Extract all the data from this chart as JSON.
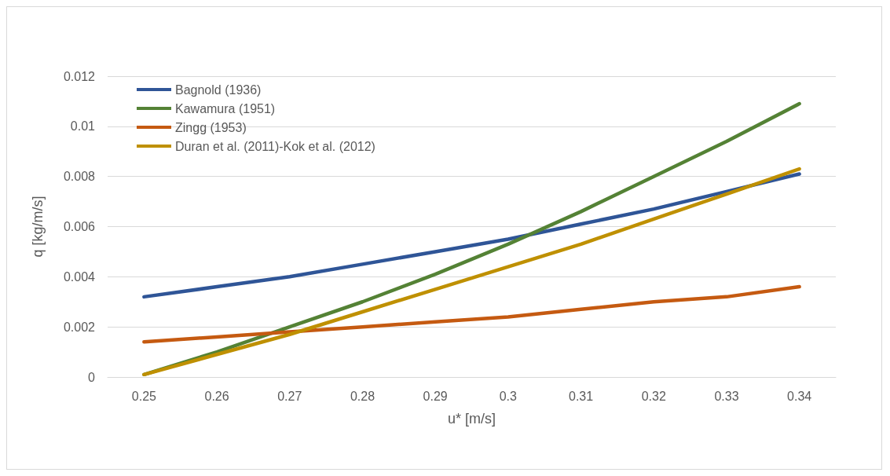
{
  "chart_data": {
    "type": "line",
    "xlabel": "u* [m/s]",
    "ylabel": "q [kg/m/s]",
    "categories": [
      "0.25",
      "0.26",
      "0.27",
      "0.28",
      "0.29",
      "0.3",
      "0.31",
      "0.32",
      "0.33",
      "0.34"
    ],
    "series": [
      {
        "name": "Bagnold (1936)",
        "color": "#2f5597",
        "values": [
          0.0032,
          0.0036,
          0.004,
          0.0045,
          0.005,
          0.0055,
          0.0061,
          0.0067,
          0.0074,
          0.0081
        ]
      },
      {
        "name": "Kawamura (1951)",
        "color": "#548235",
        "values": [
          0.0001,
          0.001,
          0.002,
          0.003,
          0.0041,
          0.0053,
          0.0066,
          0.008,
          0.0094,
          0.0109
        ]
      },
      {
        "name": "Zingg (1953)",
        "color": "#c55a11",
        "values": [
          0.0014,
          0.0016,
          0.0018,
          0.002,
          0.0022,
          0.0024,
          0.0027,
          0.003,
          0.0032,
          0.0036
        ]
      },
      {
        "name": "Duran et al. (2011)-Kok et al. (2012)",
        "color": "#bf9000",
        "values": [
          0.0001,
          0.0009,
          0.0017,
          0.0026,
          0.0035,
          0.0044,
          0.0053,
          0.0063,
          0.0073,
          0.0083
        ]
      }
    ],
    "ylim": [
      0,
      0.012
    ],
    "yticks": [
      0,
      0.002,
      0.004,
      0.006,
      0.008,
      0.01,
      0.012
    ],
    "grid": "y",
    "legend": "top left",
    "marker": "none",
    "line_style": "solid"
  }
}
